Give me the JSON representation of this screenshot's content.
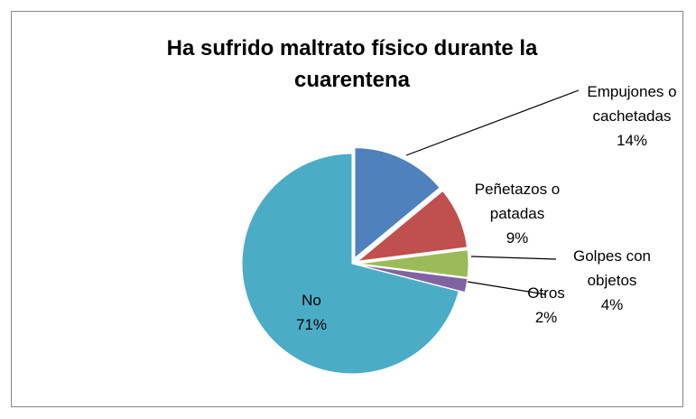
{
  "chart_data": {
    "type": "pie",
    "title": "Ha sufrido maltrato físico durante la cuarentena",
    "categories": [
      "Empujones o cachetadas",
      "Peñetazos o patadas",
      "Golpes con objetos",
      "Otros",
      "No"
    ],
    "values": [
      14,
      9,
      4,
      2,
      71
    ],
    "value_labels": [
      "14%",
      "9%",
      "4%",
      "2%",
      "71%"
    ],
    "colors": [
      "#4f81bd",
      "#c0504d",
      "#9bbb59",
      "#8064a2",
      "#4bacc6"
    ]
  }
}
